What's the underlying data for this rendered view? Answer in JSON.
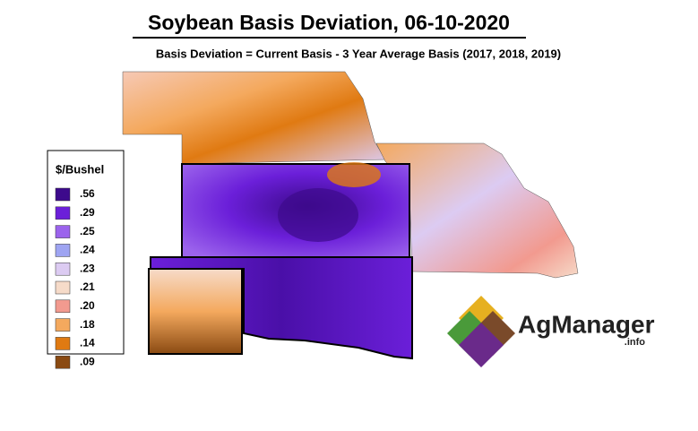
{
  "title": "Soybean Basis Deviation, 06-10-2020",
  "subtitle": "Basis Deviation = Current Basis - 3 Year Average Basis (2017, 2018, 2019)",
  "legend": {
    "title": "$/Bushel",
    "items": [
      {
        "label": ".56",
        "color": "#3d0a8c"
      },
      {
        "label": ".29",
        "color": "#6b1fd9"
      },
      {
        "label": ".25",
        "color": "#9b63ec"
      },
      {
        "label": ".24",
        "color": "#9ea4f2"
      },
      {
        "label": ".23",
        "color": "#dccbf2"
      },
      {
        "label": ".21",
        "color": "#f6dbc9"
      },
      {
        "label": ".20",
        "color": "#f29a8f"
      },
      {
        "label": ".18",
        "color": "#f4a95e"
      },
      {
        "label": ".14",
        "color": "#e07a12"
      },
      {
        "label": ".09",
        "color": "#8a4a12"
      }
    ]
  },
  "logo": {
    "name": "AgManager",
    "suffix": ".info"
  }
}
